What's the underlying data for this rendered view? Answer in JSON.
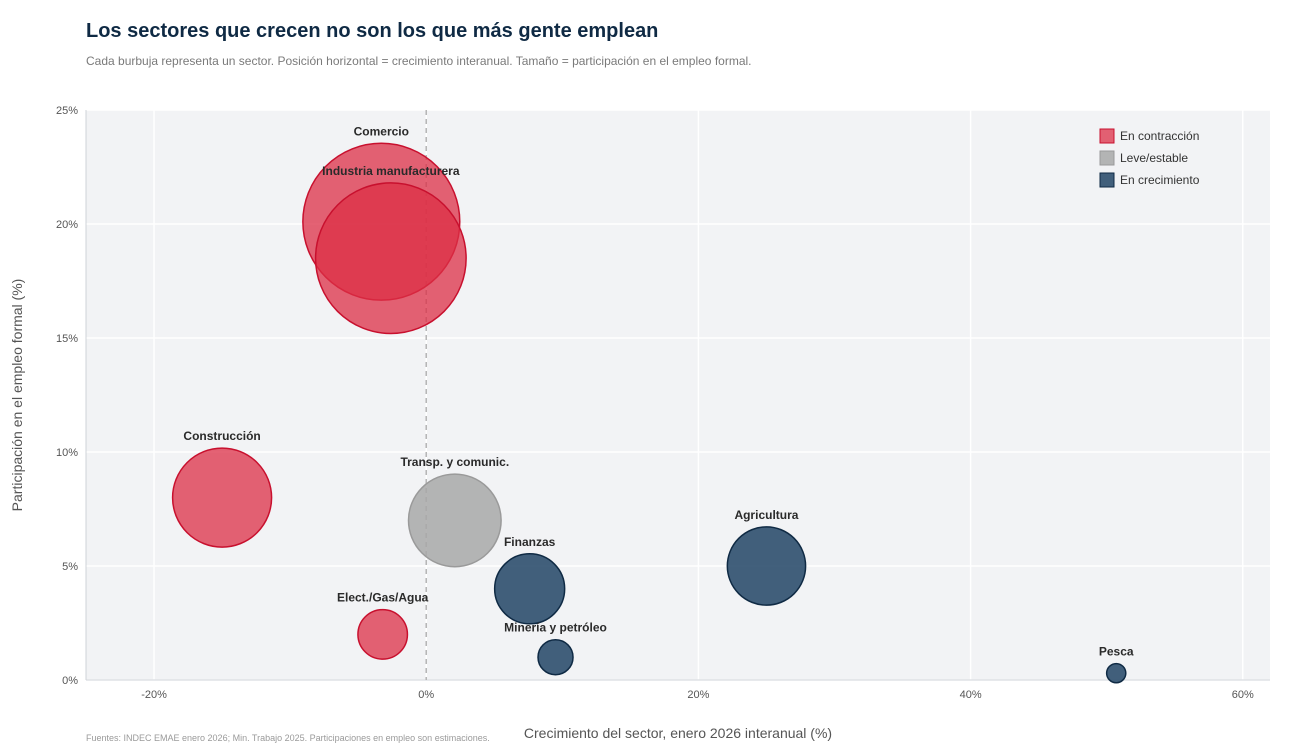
{
  "header": {
    "title": "Los sectores que crecen no son los que más gente emplean",
    "subtitle": "Cada burbuja representa un sector. Posición horizontal = crecimiento interanual. Tamaño = participación en el empleo formal."
  },
  "footer": {
    "source": "Fuentes: INDEC EMAE enero 2026; Min. Trabajo 2025. Participaciones en empleo son estimaciones."
  },
  "colors": {
    "contraccion": "#dc2f45",
    "estable": "#a8a8a8",
    "crecimiento": "#2e4f6e",
    "plot_bg": "#f2f3f5"
  },
  "chart_data": {
    "type": "scatter",
    "title": "Los sectores que crecen no son los que más gente emplean",
    "xlabel": "Crecimiento del sector, enero 2026 interanual (%)",
    "ylabel": "Participación en el empleo formal (%)",
    "xlim": [
      -25,
      62
    ],
    "ylim": [
      0,
      25
    ],
    "xticks": [
      -20,
      0,
      20,
      40,
      60
    ],
    "yticks": [
      0,
      5,
      10,
      15,
      20,
      25
    ],
    "xtick_labels": [
      "-20%",
      "0%",
      "20%",
      "40%",
      "60%"
    ],
    "ytick_labels": [
      "0%",
      "5%",
      "10%",
      "15%",
      "20%",
      "25%"
    ],
    "reference_line_x": 0,
    "grid": true,
    "legend_position": "top-right",
    "legend": [
      {
        "key": "contraccion",
        "label": "En contracción"
      },
      {
        "key": "estable",
        "label": "Leve/estable"
      },
      {
        "key": "crecimiento",
        "label": "En crecimiento"
      }
    ],
    "points": [
      {
        "label": "Comercio",
        "x": -3.3,
        "y": 20.1,
        "size": 20.1,
        "group": "contraccion"
      },
      {
        "label": "Industria manufacturera",
        "x": -2.6,
        "y": 18.5,
        "size": 18.5,
        "group": "contraccion"
      },
      {
        "label": "Construcción",
        "x": -15.0,
        "y": 8.0,
        "size": 8.0,
        "group": "contraccion"
      },
      {
        "label": "Elect./Gas/Agua",
        "x": -3.2,
        "y": 2.0,
        "size": 2.0,
        "group": "contraccion"
      },
      {
        "label": "Pesca",
        "x": 50.7,
        "y": 0.3,
        "size": 0.3,
        "group": "crecimiento"
      },
      {
        "label": "Transp. y comunic.",
        "x": 2.1,
        "y": 7.0,
        "size": 7.0,
        "group": "estable"
      },
      {
        "label": "Finanzas",
        "x": 7.6,
        "y": 4.0,
        "size": 4.0,
        "group": "crecimiento"
      },
      {
        "label": "Minería y petróleo",
        "x": 9.5,
        "y": 1.0,
        "size": 1.0,
        "group": "crecimiento"
      },
      {
        "label": "Agricultura",
        "x": 25.0,
        "y": 5.0,
        "size": 5.0,
        "group": "crecimiento"
      }
    ]
  }
}
